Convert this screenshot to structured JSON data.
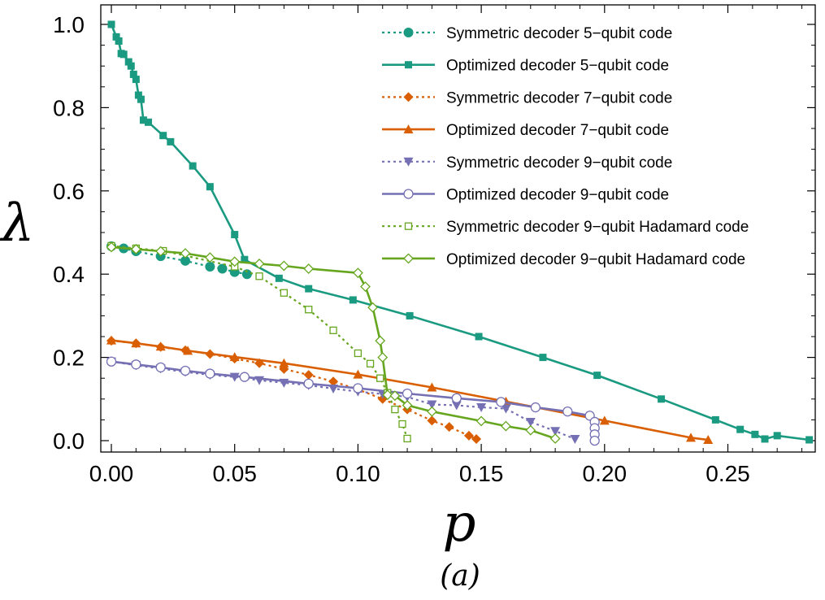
{
  "chart_data": {
    "type": "line",
    "title": "",
    "caption": "(a)",
    "xlabel": "p",
    "ylabel": "λ",
    "xlim": [
      0.0,
      0.29
    ],
    "ylim": [
      0.0,
      1.0
    ],
    "xticks": [
      0.0,
      0.05,
      0.1,
      0.15,
      0.2,
      0.25
    ],
    "xtick_labels": [
      "0.00",
      "0.05",
      "0.10",
      "0.15",
      "0.20",
      "0.25"
    ],
    "yticks": [
      0.0,
      0.2,
      0.4,
      0.6,
      0.8,
      1.0
    ],
    "ytick_labels": [
      "0.0",
      "0.2",
      "0.4",
      "0.6",
      "0.8",
      "1.0"
    ],
    "legend_position": "top-right",
    "series": [
      {
        "name": "Symmetric decoder 5−qubit code",
        "color": "#1a9a80",
        "dash": "dotted",
        "marker": "circle-filled",
        "x": [
          0.0,
          0.005,
          0.01,
          0.02,
          0.03,
          0.04,
          0.045,
          0.05,
          0.055
        ],
        "y": [
          0.467,
          0.462,
          0.455,
          0.443,
          0.432,
          0.418,
          0.413,
          0.405,
          0.4
        ]
      },
      {
        "name": "Optimized decoder 5−qubit code",
        "color": "#1a9a80",
        "dash": "solid",
        "marker": "square-filled",
        "x": [
          0.0,
          0.002,
          0.003,
          0.004,
          0.005,
          0.007,
          0.008,
          0.009,
          0.01,
          0.011,
          0.012,
          0.013,
          0.015,
          0.021,
          0.024,
          0.033,
          0.04,
          0.05,
          0.054,
          0.068,
          0.08,
          0.098,
          0.121,
          0.149,
          0.175,
          0.197,
          0.223,
          0.245,
          0.255,
          0.261,
          0.265,
          0.27,
          0.283
        ],
        "y": [
          1.0,
          0.97,
          0.96,
          0.93,
          0.928,
          0.91,
          0.9,
          0.88,
          0.868,
          0.83,
          0.82,
          0.77,
          0.765,
          0.733,
          0.718,
          0.66,
          0.61,
          0.495,
          0.435,
          0.39,
          0.365,
          0.338,
          0.3,
          0.25,
          0.2,
          0.157,
          0.1,
          0.05,
          0.027,
          0.015,
          0.004,
          0.012,
          0.002
        ]
      },
      {
        "name": "Symmetric decoder 7−qubit code",
        "color": "#d95f02",
        "dash": "dotted",
        "marker": "diamond-filled",
        "x": [
          0.0,
          0.01,
          0.02,
          0.03,
          0.04,
          0.05,
          0.06,
          0.07,
          0.08,
          0.09,
          0.1,
          0.11,
          0.12,
          0.13,
          0.137,
          0.145,
          0.148
        ],
        "y": [
          0.24,
          0.234,
          0.225,
          0.217,
          0.208,
          0.197,
          0.186,
          0.172,
          0.158,
          0.142,
          0.123,
          0.1,
          0.075,
          0.048,
          0.033,
          0.012,
          0.004
        ]
      },
      {
        "name": "Optimized decoder 7−qubit code",
        "color": "#d95f02",
        "dash": "solid",
        "marker": "triangle-up-filled",
        "x": [
          0.0,
          0.01,
          0.02,
          0.031,
          0.05,
          0.07,
          0.1,
          0.13,
          0.16,
          0.2,
          0.235,
          0.242
        ],
        "y": [
          0.241,
          0.234,
          0.226,
          0.216,
          0.201,
          0.186,
          0.159,
          0.128,
          0.094,
          0.048,
          0.007,
          0.002
        ]
      },
      {
        "name": "Symmetric decoder 9−qubit code",
        "color": "#7570b3",
        "dash": "dotted",
        "marker": "triangle-down-filled",
        "x": [
          0.0,
          0.01,
          0.02,
          0.03,
          0.04,
          0.05,
          0.06,
          0.07,
          0.08,
          0.09,
          0.1,
          0.11,
          0.12,
          0.13,
          0.14,
          0.15,
          0.16,
          0.17,
          0.18,
          0.188
        ],
        "y": [
          0.19,
          0.181,
          0.173,
          0.165,
          0.158,
          0.153,
          0.145,
          0.139,
          0.133,
          0.125,
          0.118,
          0.112,
          0.105,
          0.087,
          0.085,
          0.08,
          0.077,
          0.045,
          0.023,
          0.004
        ]
      },
      {
        "name": "Optimized decoder 9−qubit code",
        "color": "#7570b3",
        "dash": "solid",
        "marker": "circle-open",
        "x": [
          0.0,
          0.01,
          0.02,
          0.03,
          0.04,
          0.054,
          0.08,
          0.1,
          0.12,
          0.14,
          0.158,
          0.172,
          0.185,
          0.194,
          0.196,
          0.196,
          0.196,
          0.196
        ],
        "y": [
          0.19,
          0.183,
          0.176,
          0.168,
          0.161,
          0.153,
          0.137,
          0.126,
          0.113,
          0.102,
          0.093,
          0.08,
          0.07,
          0.06,
          0.045,
          0.03,
          0.015,
          0.0
        ]
      },
      {
        "name": "Symmetric decoder 9−qubit Hadamard code",
        "color": "#66a61e",
        "dash": "dotted",
        "marker": "square-open",
        "x": [
          0.0,
          0.01,
          0.021,
          0.05,
          0.06,
          0.07,
          0.08,
          0.09,
          0.1,
          0.105,
          0.109,
          0.112,
          0.115,
          0.118,
          0.12
        ],
        "y": [
          0.468,
          0.462,
          0.456,
          0.418,
          0.395,
          0.355,
          0.315,
          0.265,
          0.21,
          0.185,
          0.15,
          0.115,
          0.075,
          0.04,
          0.005
        ]
      },
      {
        "name": "Optimized decoder 9−qubit Hadamard code",
        "color": "#66a61e",
        "dash": "solid",
        "marker": "diamond-open",
        "x": [
          0.0,
          0.01,
          0.02,
          0.03,
          0.04,
          0.05,
          0.06,
          0.07,
          0.08,
          0.1,
          0.103,
          0.106,
          0.109,
          0.11,
          0.112,
          0.115,
          0.12,
          0.13,
          0.15,
          0.16,
          0.17,
          0.18
        ],
        "y": [
          0.465,
          0.46,
          0.455,
          0.45,
          0.44,
          0.43,
          0.425,
          0.42,
          0.413,
          0.403,
          0.37,
          0.32,
          0.24,
          0.2,
          0.11,
          0.108,
          0.085,
          0.07,
          0.047,
          0.035,
          0.025,
          0.005
        ]
      }
    ]
  }
}
